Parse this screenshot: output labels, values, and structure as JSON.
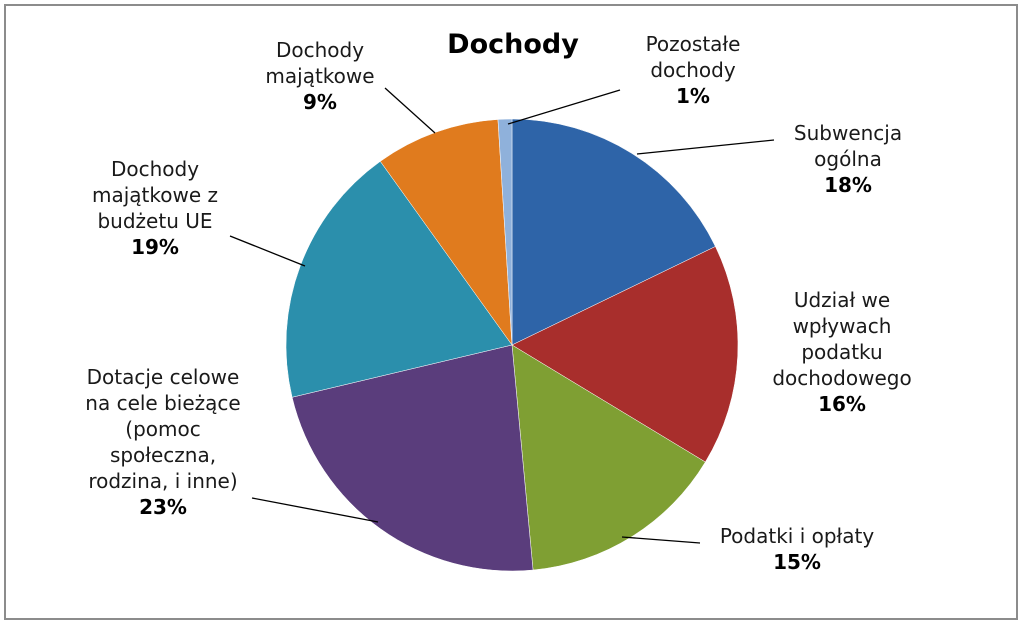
{
  "chart_data": {
    "type": "pie",
    "title": "Dochody",
    "slices": [
      {
        "label_lines": [
          "Subwencja",
          "ogólna"
        ],
        "value": 18,
        "pct_label": "18%",
        "color": "#2e64a8"
      },
      {
        "label_lines": [
          "Udział we",
          "wpływach",
          "podatku",
          "dochodowego"
        ],
        "value": 16,
        "pct_label": "16%",
        "color": "#a82e2c"
      },
      {
        "label_lines": [
          "Podatki i opłaty"
        ],
        "value": 15,
        "pct_label": "15%",
        "color": "#7f9f33"
      },
      {
        "label_lines": [
          "Dotacje celowe",
          "na cele bieżące",
          "(pomoc",
          "społeczna,",
          "rodzina, i inne)"
        ],
        "value": 23,
        "pct_label": "23%",
        "color": "#5a3d7c"
      },
      {
        "label_lines": [
          "Dochody",
          "majątkowe z",
          "budżetu UE"
        ],
        "value": 19,
        "pct_label": "19%",
        "color": "#2b8fac"
      },
      {
        "label_lines": [
          "Dochody",
          "majątkowe"
        ],
        "value": 9,
        "pct_label": "9%",
        "color": "#e07b1e"
      },
      {
        "label_lines": [
          "Pozostałe",
          "dochody"
        ],
        "value": 1,
        "pct_label": "1%",
        "color": "#8fb1db"
      }
    ],
    "legend": "none",
    "data_labels": "outside with leader lines"
  }
}
